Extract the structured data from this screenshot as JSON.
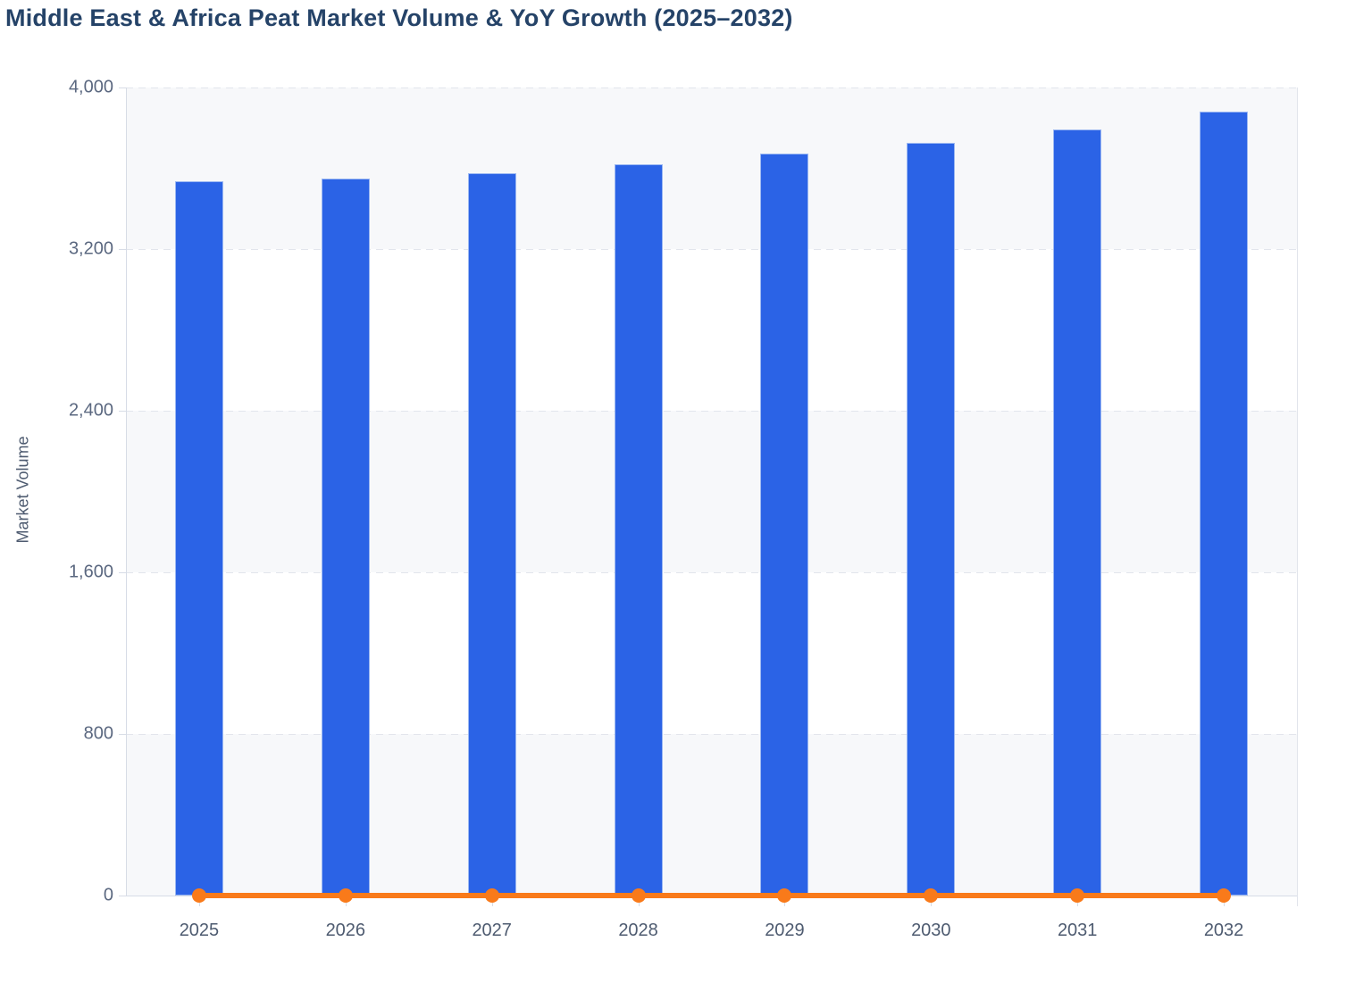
{
  "chart_data": {
    "type": "bar",
    "title": "Middle East & Africa Peat Market Volume & YoY Growth (2025–2032)",
    "categories": [
      "2025",
      "2026",
      "2027",
      "2028",
      "2029",
      "2030",
      "2031",
      "2032"
    ],
    "series": [
      {
        "name": "Market Volume",
        "type": "bar",
        "color": "#2b63e6",
        "values": [
          3536,
          3549,
          3576,
          3620,
          3673,
          3726,
          3793,
          3881
        ]
      },
      {
        "name": "YoY Growth",
        "type": "line",
        "color": "#f97a1a",
        "values": [
          0,
          0,
          0,
          0,
          0,
          0,
          0,
          0
        ]
      }
    ],
    "xlabel": "",
    "ylabel": "Market Volume",
    "ylim": [
      0,
      4000
    ],
    "yticks": [
      0,
      800,
      1600,
      2400,
      3200,
      4000
    ],
    "ytick_labels": [
      "0",
      "800",
      "1,600",
      "2,400",
      "3,200",
      "4,000"
    ],
    "legend_position": "none",
    "grid": "horizontal-dashed",
    "band_shading": true,
    "band_color": "#f7f8fa",
    "title_color": "#254368",
    "axis_color": "#d7dce6"
  }
}
